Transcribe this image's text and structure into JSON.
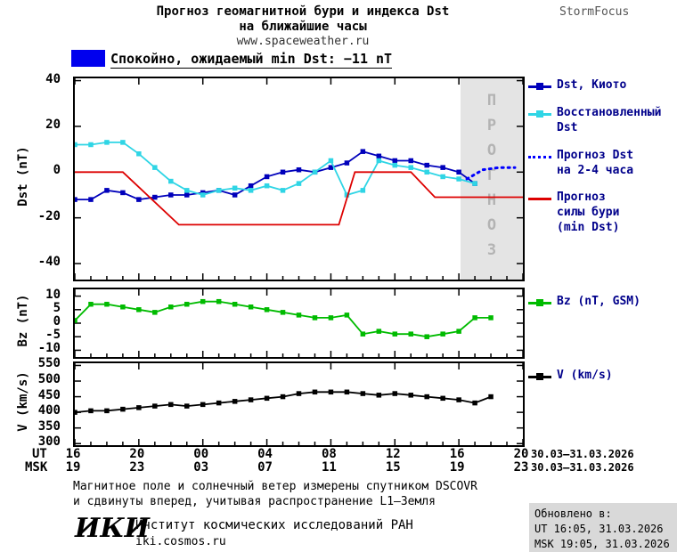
{
  "header": {
    "title_line1": "Прогноз геомагнитной бури и индекса Dst",
    "title_line2": "на ближайшие часы",
    "site_url": "www.spaceweather.ru",
    "brand": "StormFocus"
  },
  "status_bar": {
    "swatch_color": "#0000ee",
    "text": "Спокойно, ожидаемый min Dst: −11 nT"
  },
  "chart_data": [
    {
      "type": "line",
      "title": "Прогноз геомагнитной бури и индекса Dst на ближайшие часы",
      "ylabel": "Dst (nT)",
      "xlim": [
        16,
        44
      ],
      "ylim": [
        -47,
        41
      ],
      "yticks": [
        40,
        20,
        0,
        -20,
        -40
      ],
      "xticks": [
        16,
        20,
        24,
        28,
        32,
        36,
        40,
        44
      ],
      "grid": false,
      "band": {
        "from": 40.1,
        "to": 44,
        "label": "ПРОГНОЗ",
        "color": "#e4e4e4"
      },
      "series": [
        {
          "name": "Dst, Киото",
          "color": "#0000bb",
          "marker": true,
          "x": [
            16,
            17,
            18,
            19,
            20,
            21,
            22,
            23,
            24,
            25,
            26,
            27,
            28,
            29,
            30,
            31,
            32,
            33,
            34,
            35,
            36,
            37,
            38,
            39,
            40,
            41
          ],
          "y": [
            -12,
            -12,
            -8,
            -9,
            -12,
            -11,
            -10,
            -10,
            -9,
            -8,
            -10,
            -6,
            -2,
            0,
            1,
            0,
            2,
            4,
            9,
            7,
            5,
            5,
            3,
            2,
            0,
            -5
          ]
        },
        {
          "name": "Восстановленный Dst",
          "color": "#2fd5e5",
          "marker": true,
          "x": [
            16,
            17,
            18,
            19,
            20,
            21,
            22,
            23,
            24,
            25,
            26,
            27,
            28,
            29,
            30,
            31,
            32,
            33,
            34,
            35,
            36,
            37,
            38,
            39,
            40,
            41
          ],
          "y": [
            12,
            12,
            13,
            13,
            8,
            2,
            -4,
            -8,
            -10,
            -8,
            -7,
            -8,
            -6,
            -8,
            -5,
            0,
            5,
            -10,
            -8,
            5,
            3,
            2,
            0,
            -2,
            -3,
            -5
          ]
        },
        {
          "name": "Прогноз Dst на 2-4 часа",
          "color": "#0000ff",
          "dotted": true,
          "x": [
            40.5,
            41.5,
            42.5,
            43.5
          ],
          "y": [
            -3,
            1,
            2,
            2
          ]
        },
        {
          "name": "Прогноз силы бури (min Dst)",
          "color": "#dd0000",
          "x": [
            16,
            19,
            22.5,
            32.5,
            33.5,
            37,
            38.5,
            44
          ],
          "y": [
            0,
            0,
            -23,
            -23,
            0,
            0,
            -11,
            -11
          ]
        }
      ]
    },
    {
      "type": "line",
      "ylabel": "Bz (nT)",
      "xlim": [
        16,
        44
      ],
      "ylim": [
        -12.5,
        12.5
      ],
      "yticks": [
        10,
        5,
        0,
        -5,
        -10
      ],
      "xticks": [
        16,
        20,
        24,
        28,
        32,
        36,
        40,
        44
      ],
      "grid": false,
      "series": [
        {
          "name": "Bz (nT, GSM)",
          "color": "#00bb00",
          "marker": true,
          "x": [
            16,
            17,
            18,
            19,
            20,
            21,
            22,
            23,
            24,
            25,
            26,
            27,
            28,
            29,
            30,
            31,
            32,
            33,
            34,
            35,
            36,
            37,
            38,
            39,
            40,
            41,
            42
          ],
          "y": [
            1,
            7,
            7,
            6,
            5,
            4,
            6,
            7,
            8,
            8,
            7,
            6,
            5,
            4,
            3,
            2,
            2,
            3,
            -4,
            -3,
            -4,
            -4,
            -5,
            -4,
            -3,
            2,
            2
          ]
        }
      ]
    },
    {
      "type": "line",
      "ylabel": "V (km/s)",
      "xlim": [
        16,
        44
      ],
      "ylim": [
        295,
        557
      ],
      "yticks": [
        550,
        500,
        450,
        400,
        350,
        300
      ],
      "xticks": [
        16,
        20,
        24,
        28,
        32,
        36,
        40,
        44
      ],
      "grid": false,
      "series": [
        {
          "name": "V (km/s)",
          "color": "#000000",
          "marker": true,
          "x": [
            16,
            17,
            18,
            19,
            20,
            21,
            22,
            23,
            24,
            25,
            26,
            27,
            28,
            29,
            30,
            31,
            32,
            33,
            34,
            35,
            36,
            37,
            38,
            39,
            40,
            41,
            42
          ],
          "y": [
            400,
            405,
            405,
            410,
            415,
            420,
            425,
            420,
            425,
            430,
            435,
            440,
            445,
            450,
            460,
            465,
            465,
            465,
            460,
            455,
            460,
            455,
            450,
            445,
            440,
            430,
            450
          ]
        }
      ]
    }
  ],
  "xaxis": {
    "ut_label": "UT",
    "msk_label": "MSK",
    "ut_ticks": [
      "16",
      "20",
      "00",
      "04",
      "08",
      "12",
      "16",
      "20"
    ],
    "msk_ticks": [
      "19",
      "23",
      "03",
      "07",
      "11",
      "15",
      "19",
      "23"
    ],
    "ut_date": "30.03–31.03.2026",
    "msk_date": "30.03–31.03.2026"
  },
  "legends": {
    "main": [
      {
        "label": "Dst, Киото",
        "color": "#0000bb",
        "style": "square"
      },
      {
        "label": "Восстановленный\nDst",
        "color": "#2fd5e5",
        "style": "square"
      },
      {
        "label": "Прогноз Dst\nна 2-4 часа",
        "color": "#0000ff",
        "style": "dotted"
      },
      {
        "label": "Прогноз\nсилы бури\n(min Dst)",
        "color": "#dd0000",
        "style": "plain"
      }
    ],
    "bz": {
      "label": "Bz (nT, GSM)",
      "color": "#00bb00",
      "style": "square"
    },
    "v": {
      "label": "V (km/s)",
      "color": "#000000",
      "style": "square"
    }
  },
  "footer": {
    "note_line1": "Магнитное поле и солнечный ветер измерены спутником DSCOVR",
    "note_line2": "и сдвинуты вперед, учитывая распространение L1—Земля",
    "updated_title": "Обновлено в:",
    "updated_ut": "UT  16:05, 31.03.2026",
    "updated_msk": "MSK 19:05, 31.03.2026",
    "logo": "ИКИ",
    "institute": "Институт космических исследований РАН",
    "institute_url": "iki.cosmos.ru"
  }
}
